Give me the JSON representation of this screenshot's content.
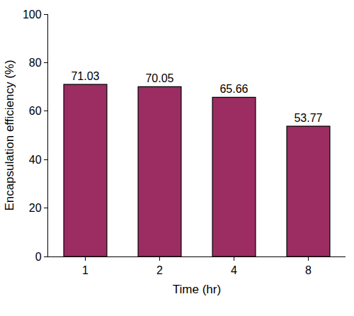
{
  "chart_data": {
    "type": "bar",
    "x_label": "Time (hr)",
    "y_label": "Encapsulation efficiency (%)",
    "categories": [
      "1",
      "2",
      "4",
      "8"
    ],
    "values": [
      71.03,
      70.05,
      65.66,
      53.77
    ],
    "color": "#9b2d62",
    "ylim": [
      0,
      100
    ],
    "yticks": [
      0,
      20,
      40,
      60,
      80,
      100
    ],
    "grid": false,
    "data_labels": true
  }
}
